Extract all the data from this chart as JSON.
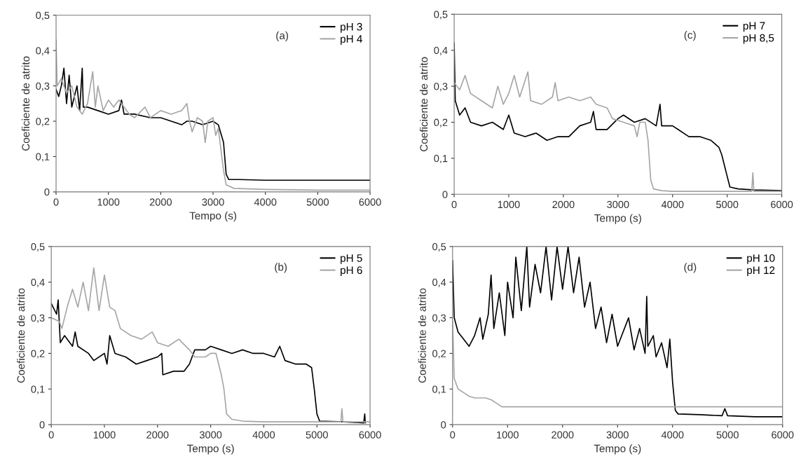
{
  "chart_data": [
    {
      "type": "line",
      "annotations": [
        "(a)"
      ],
      "xlabel": "Tempo (s)",
      "ylabel": "Coeficiente de atrito",
      "xlim": [
        0,
        6000
      ],
      "ylim": [
        0,
        0.5
      ],
      "xticks": [
        0,
        1000,
        2000,
        3000,
        4000,
        5000,
        6000
      ],
      "yticks": [
        0,
        {
          "value": 0.1,
          "label": "0,1"
        },
        {
          "value": 0.2,
          "label": "0,2"
        },
        {
          "value": 0.3,
          "label": "0,3"
        },
        {
          "value": 0.4,
          "label": "0,4"
        },
        {
          "value": 0.5,
          "label": "0,5"
        }
      ],
      "grid": false,
      "legend": "top right",
      "marker": "none",
      "line_style": "solid",
      "series": [
        {
          "name": "pH 3",
          "color": "#000000",
          "x": [
            0,
            50,
            100,
            150,
            200,
            250,
            300,
            400,
            450,
            500,
            520,
            600,
            800,
            1000,
            1200,
            1250,
            1300,
            1500,
            1800,
            2000,
            2200,
            2400,
            2500,
            2600,
            2800,
            3000,
            3100,
            3200,
            3250,
            3300,
            3500,
            4000,
            5000,
            6000
          ],
          "values": [
            0.29,
            0.27,
            0.3,
            0.35,
            0.25,
            0.33,
            0.24,
            0.3,
            0.23,
            0.35,
            0.24,
            0.24,
            0.23,
            0.22,
            0.23,
            0.26,
            0.22,
            0.22,
            0.21,
            0.21,
            0.2,
            0.19,
            0.2,
            0.2,
            0.19,
            0.2,
            0.19,
            0.14,
            0.05,
            0.035,
            0.035,
            0.033,
            0.033,
            0.033
          ]
        },
        {
          "name": "pH 4",
          "color": "#a6a6a6",
          "x": [
            0,
            20,
            100,
            200,
            300,
            400,
            500,
            600,
            700,
            750,
            800,
            900,
            1000,
            1100,
            1200,
            1400,
            1500,
            1700,
            1800,
            2000,
            2200,
            2400,
            2500,
            2550,
            2600,
            2700,
            2800,
            2850,
            2900,
            3000,
            3050,
            3100,
            3200,
            3250,
            3400,
            4000,
            5000,
            6000
          ],
          "values": [
            0.43,
            0.3,
            0.32,
            0.28,
            0.3,
            0.24,
            0.22,
            0.25,
            0.34,
            0.24,
            0.3,
            0.23,
            0.26,
            0.24,
            0.26,
            0.22,
            0.21,
            0.24,
            0.21,
            0.23,
            0.22,
            0.23,
            0.25,
            0.2,
            0.17,
            0.21,
            0.2,
            0.14,
            0.2,
            0.21,
            0.16,
            0.18,
            0.06,
            0.02,
            0.01,
            0.007,
            0.005,
            0.005
          ]
        }
      ]
    },
    {
      "type": "line",
      "annotations": [
        "(c)"
      ],
      "xlabel": "Tempo (s)",
      "ylabel": "Coeficiente de atrito",
      "xlim": [
        0,
        6000
      ],
      "ylim": [
        0,
        0.5
      ],
      "xticks": [
        0,
        1000,
        2000,
        3000,
        4000,
        5000,
        6000
      ],
      "yticks": [
        0,
        {
          "value": 0.1,
          "label": "0,1"
        },
        {
          "value": 0.2,
          "label": "0,2"
        },
        {
          "value": 0.3,
          "label": "0,3"
        },
        {
          "value": 0.4,
          "label": "0,4"
        },
        {
          "value": 0.5,
          "label": "0,5"
        }
      ],
      "grid": false,
      "legend": "top right",
      "marker": "none",
      "line_style": "solid",
      "series": [
        {
          "name": "pH 7",
          "color": "#000000",
          "x": [
            0,
            20,
            100,
            200,
            300,
            500,
            700,
            900,
            1000,
            1100,
            1300,
            1500,
            1700,
            1900,
            2100,
            2300,
            2500,
            2550,
            2600,
            2800,
            3000,
            3100,
            3300,
            3500,
            3700,
            3770,
            3800,
            4000,
            4100,
            4300,
            4500,
            4700,
            4850,
            4900,
            4950,
            5000,
            5050,
            5200,
            5500,
            6000
          ],
          "values": [
            0.42,
            0.26,
            0.22,
            0.24,
            0.2,
            0.19,
            0.2,
            0.18,
            0.22,
            0.17,
            0.16,
            0.17,
            0.15,
            0.16,
            0.16,
            0.19,
            0.2,
            0.23,
            0.18,
            0.18,
            0.21,
            0.22,
            0.2,
            0.21,
            0.19,
            0.25,
            0.19,
            0.19,
            0.18,
            0.16,
            0.16,
            0.15,
            0.13,
            0.11,
            0.08,
            0.05,
            0.02,
            0.015,
            0.012,
            0.01
          ]
        },
        {
          "name": "pH 8,5",
          "color": "#a6a6a6",
          "x": [
            0,
            100,
            200,
            300,
            500,
            700,
            800,
            900,
            1000,
            1100,
            1200,
            1350,
            1400,
            1600,
            1800,
            1850,
            1900,
            2100,
            2300,
            2500,
            2600,
            2800,
            2900,
            3100,
            3300,
            3350,
            3400,
            3500,
            3550,
            3600,
            3650,
            3800,
            4000,
            5000,
            5450,
            5470,
            5490,
            6000
          ],
          "values": [
            0.31,
            0.29,
            0.33,
            0.28,
            0.26,
            0.24,
            0.3,
            0.25,
            0.28,
            0.33,
            0.27,
            0.34,
            0.26,
            0.25,
            0.27,
            0.31,
            0.26,
            0.27,
            0.26,
            0.27,
            0.25,
            0.24,
            0.21,
            0.2,
            0.19,
            0.16,
            0.2,
            0.2,
            0.15,
            0.04,
            0.015,
            0.01,
            0.008,
            0.008,
            0.008,
            0.06,
            0.008,
            0.008
          ]
        }
      ]
    },
    {
      "type": "line",
      "annotations": [
        "(b)"
      ],
      "xlabel": "Tempo (s)",
      "ylabel": "Coeficiente de atrito",
      "xlim": [
        0,
        6000
      ],
      "ylim": [
        0,
        0.5
      ],
      "xticks": [
        0,
        1000,
        2000,
        3000,
        4000,
        5000,
        6000
      ],
      "yticks": [
        0,
        {
          "value": 0.1,
          "label": "0,1"
        },
        {
          "value": 0.2,
          "label": "0,2"
        },
        {
          "value": 0.3,
          "label": "0,3"
        },
        {
          "value": 0.4,
          "label": "0,4"
        },
        {
          "value": 0.5,
          "label": "0,5"
        }
      ],
      "grid": false,
      "legend": "top right",
      "marker": "none",
      "line_style": "solid",
      "series": [
        {
          "name": "pH 5",
          "color": "#000000",
          "x": [
            0,
            100,
            130,
            170,
            250,
            400,
            450,
            500,
            700,
            800,
            1000,
            1050,
            1100,
            1200,
            1400,
            1600,
            1800,
            2000,
            2080,
            2100,
            2300,
            2500,
            2600,
            2700,
            2900,
            3000,
            3200,
            3400,
            3600,
            3800,
            4000,
            4200,
            4300,
            4400,
            4600,
            4800,
            4900,
            4950,
            5000,
            5050,
            5500,
            5880,
            5900,
            5910
          ],
          "values": [
            0.34,
            0.31,
            0.35,
            0.23,
            0.25,
            0.22,
            0.26,
            0.22,
            0.2,
            0.18,
            0.2,
            0.17,
            0.25,
            0.2,
            0.19,
            0.17,
            0.18,
            0.19,
            0.2,
            0.14,
            0.15,
            0.15,
            0.17,
            0.21,
            0.21,
            0.22,
            0.21,
            0.2,
            0.21,
            0.2,
            0.2,
            0.19,
            0.22,
            0.18,
            0.17,
            0.17,
            0.16,
            0.1,
            0.03,
            0.01,
            0.008,
            0.005,
            0.03,
            0.005
          ]
        },
        {
          "name": "pH 6",
          "color": "#a6a6a6",
          "x": [
            0,
            150,
            200,
            300,
            400,
            500,
            600,
            700,
            800,
            900,
            1000,
            1100,
            1200,
            1300,
            1500,
            1700,
            1900,
            2000,
            2200,
            2400,
            2600,
            2700,
            2900,
            3000,
            3100,
            3200,
            3250,
            3300,
            3400,
            3600,
            4000,
            5000,
            5450,
            5470,
            5490,
            6000
          ],
          "values": [
            0.3,
            0.29,
            0.27,
            0.33,
            0.38,
            0.33,
            0.4,
            0.32,
            0.44,
            0.32,
            0.42,
            0.33,
            0.32,
            0.27,
            0.25,
            0.24,
            0.26,
            0.23,
            0.22,
            0.24,
            0.21,
            0.19,
            0.19,
            0.2,
            0.2,
            0.14,
            0.1,
            0.03,
            0.015,
            0.01,
            0.008,
            0.008,
            0.008,
            0.045,
            0.008,
            0.008
          ]
        }
      ]
    },
    {
      "type": "line",
      "annotations": [
        "(d)"
      ],
      "xlabel": "Tempo (s)",
      "ylabel": "Coeficiente de atrito",
      "xlim": [
        0,
        6000
      ],
      "ylim": [
        0,
        0.5
      ],
      "xticks": [
        0,
        1000,
        2000,
        3000,
        4000,
        5000,
        6000
      ],
      "yticks": [
        0,
        {
          "value": 0.1,
          "label": "0,1"
        },
        {
          "value": 0.2,
          "label": "0,2"
        },
        {
          "value": 0.3,
          "label": "0,3"
        },
        {
          "value": 0.4,
          "label": "0,4"
        },
        {
          "value": 0.5,
          "label": "0,5"
        }
      ],
      "grid": false,
      "legend": "top right",
      "marker": "none",
      "line_style": "solid",
      "series": [
        {
          "name": "pH 10",
          "color": "#000000",
          "x": [
            0,
            30,
            100,
            200,
            300,
            400,
            500,
            550,
            650,
            700,
            750,
            850,
            950,
            1000,
            1100,
            1150,
            1250,
            1350,
            1400,
            1500,
            1600,
            1700,
            1800,
            1900,
            2000,
            2100,
            2200,
            2300,
            2400,
            2500,
            2600,
            2700,
            2800,
            2900,
            3000,
            3200,
            3300,
            3400,
            3500,
            3530,
            3550,
            3650,
            3700,
            3800,
            3900,
            3950,
            4000,
            4050,
            4100,
            4500,
            4900,
            4950,
            5000,
            5500,
            6000
          ],
          "values": [
            0.46,
            0.3,
            0.26,
            0.24,
            0.22,
            0.25,
            0.3,
            0.24,
            0.31,
            0.42,
            0.27,
            0.37,
            0.25,
            0.4,
            0.3,
            0.47,
            0.32,
            0.5,
            0.33,
            0.45,
            0.37,
            0.5,
            0.35,
            0.5,
            0.38,
            0.5,
            0.37,
            0.47,
            0.33,
            0.4,
            0.27,
            0.33,
            0.23,
            0.31,
            0.22,
            0.3,
            0.21,
            0.27,
            0.2,
            0.36,
            0.22,
            0.25,
            0.19,
            0.23,
            0.16,
            0.24,
            0.12,
            0.04,
            0.03,
            0.028,
            0.025,
            0.045,
            0.025,
            0.022,
            0.022
          ]
        },
        {
          "name": "pH 12",
          "color": "#a6a6a6",
          "x": [
            0,
            30,
            100,
            200,
            300,
            400,
            600,
            700,
            800,
            900,
            1000,
            2000,
            4000,
            6000
          ],
          "values": [
            0.29,
            0.13,
            0.1,
            0.09,
            0.08,
            0.075,
            0.075,
            0.07,
            0.06,
            0.05,
            0.05,
            0.05,
            0.05,
            0.05
          ]
        }
      ]
    }
  ]
}
